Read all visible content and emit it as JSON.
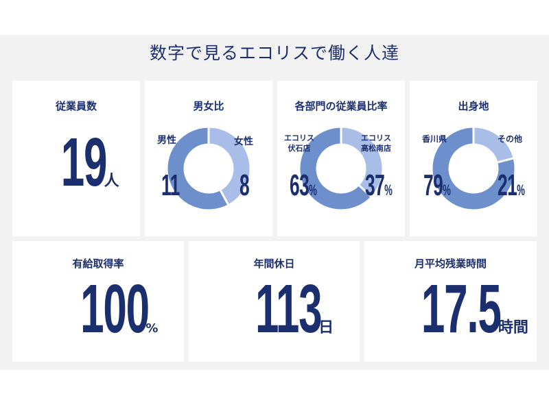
{
  "title": "数字で見るエコリスで働く人達",
  "colors": {
    "navy": "#1b2f6e",
    "donut_dark": "#6d8fcc",
    "donut_light": "#a8bde8"
  },
  "employees": {
    "title": "従業員数",
    "value": "19",
    "unit": "人"
  },
  "gender": {
    "title": "男女比",
    "left_label": "男性",
    "left_value": "11",
    "right_label": "女性",
    "right_value": "8",
    "left": 11,
    "right": 8
  },
  "department": {
    "title": "各部門の従業員比率",
    "left_label": "エコリス\n伏石店",
    "left_value": "63",
    "right_label": "エコリス\n高松南店",
    "right_value": "37",
    "unit": "%",
    "left": 63,
    "right": 37
  },
  "origin": {
    "title": "出身地",
    "left_label": "香川県",
    "left_value": "79",
    "right_label": "その他",
    "right_value": "21",
    "unit": "%",
    "left": 79,
    "right": 21
  },
  "leave": {
    "title": "有給取得率",
    "value": "100",
    "unit": "%"
  },
  "holidays": {
    "title": "年間休日",
    "value": "113",
    "unit": "日"
  },
  "overtime": {
    "title": "月平均残業時間",
    "value": "17.5",
    "unit": "時間"
  }
}
